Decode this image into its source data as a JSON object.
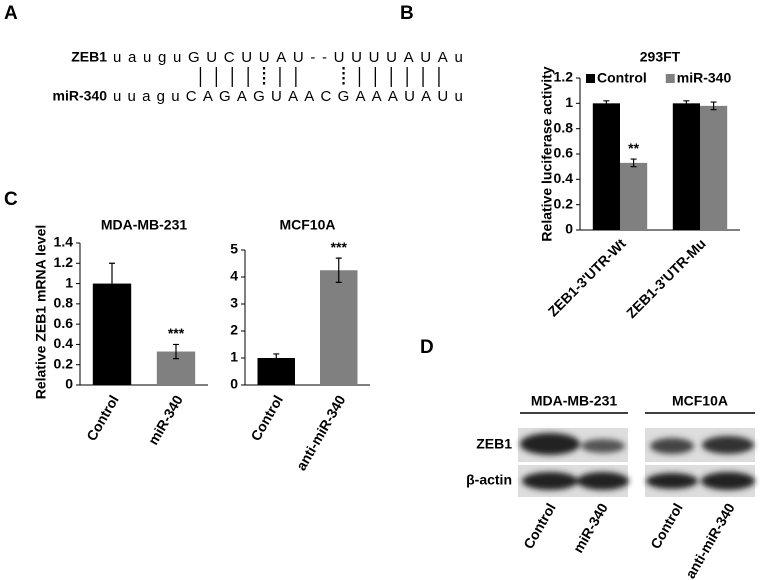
{
  "panel_a": {
    "label": "A",
    "rows": [
      {
        "name": "ZEB1",
        "sequence": "uauguGUCUUAU--UUUUAUAu"
      },
      {
        "name": "miR-340",
        "sequence": "uuaguCAGAGUAACGAAAUAUu"
      }
    ]
  },
  "chart_data": [
    {
      "type": "bar",
      "panel_label": "B",
      "title": "293FT",
      "ylabel": "Relative luciferase activity",
      "categories": [
        "ZEB1-3'UTR-Wt",
        "ZEB1-3'UTR-Mu"
      ],
      "series": [
        {
          "name": "Control",
          "color": "#000000",
          "values": [
            1,
            1
          ],
          "errors": [
            0.02,
            0.02
          ]
        },
        {
          "name": "miR-340",
          "color": "#808080",
          "values": [
            0.53,
            0.98
          ],
          "errors": [
            0.03,
            0.03
          ]
        }
      ],
      "annotations": [
        {
          "text": "**",
          "series": 1,
          "category": 0
        }
      ],
      "ylim": [
        0,
        1.2
      ],
      "yticks": [
        0,
        0.2,
        0.4,
        0.6,
        0.8,
        1,
        1.2
      ],
      "legend": "top"
    },
    {
      "type": "bar",
      "panel_label": "C",
      "title": "MDA-MB-231",
      "ylabel": "Relative ZEB1  mRNA level",
      "categories": [
        "Control",
        "miR-340"
      ],
      "values": [
        1,
        0.33
      ],
      "errors": [
        0.2,
        0.07
      ],
      "colors": [
        "#000000",
        "#808080"
      ],
      "annotations": [
        {
          "text": "***",
          "category": 1
        }
      ],
      "ylim": [
        0,
        1.4
      ],
      "yticks": [
        0,
        0.2,
        0.4,
        0.6,
        0.8,
        1,
        1.2,
        1.4
      ]
    },
    {
      "type": "bar",
      "title": "MCF10A",
      "categories": [
        "Control",
        "anti-miR-340"
      ],
      "values": [
        1,
        4.25
      ],
      "errors": [
        0.15,
        0.45
      ],
      "colors": [
        "#000000",
        "#808080"
      ],
      "annotations": [
        {
          "text": "***",
          "category": 1
        }
      ],
      "ylim": [
        0,
        5
      ],
      "yticks": [
        0,
        1,
        2,
        3,
        4,
        5
      ]
    }
  ],
  "panel_d": {
    "label": "D",
    "groups": [
      {
        "name": "MDA-MB-231",
        "lanes": [
          "Control",
          "miR-340"
        ]
      },
      {
        "name": "MCF10A",
        "lanes": [
          "Control",
          "anti-miR-340"
        ]
      }
    ],
    "rows": [
      "ZEB1",
      "β-actin"
    ]
  }
}
